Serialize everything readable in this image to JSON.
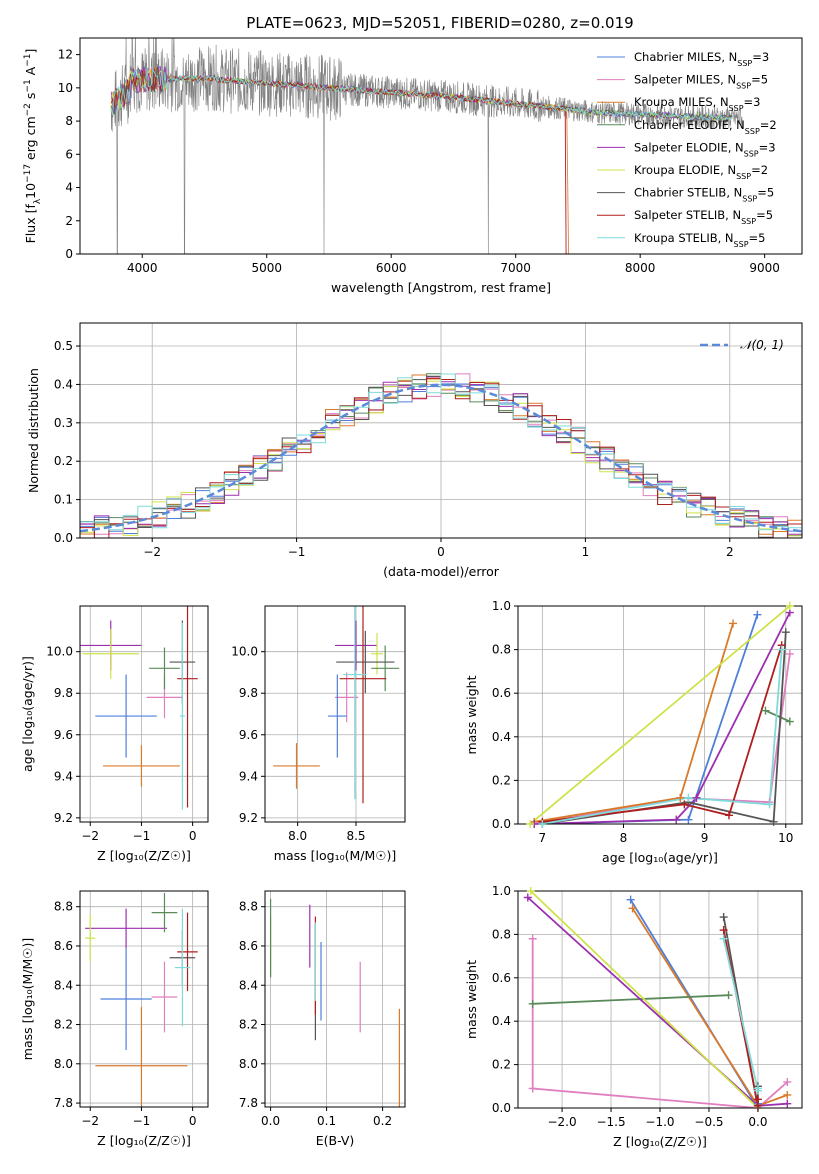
{
  "figure_title": "PLATE=0623, MJD=52051, FIBERID=0280, z=0.019",
  "series_styles": [
    {
      "name": "Chabrier MILES",
      "nssp": "3",
      "color": "#4f7fd9"
    },
    {
      "name": "Salpeter MILES",
      "nssp": "5",
      "color": "#e07fbf"
    },
    {
      "name": "Kroupa MILES",
      "nssp": "3",
      "color": "#d97a2b"
    },
    {
      "name": "Chabrier ELODIE",
      "nssp": "2",
      "color": "#5a8a5a"
    },
    {
      "name": "Salpeter ELODIE",
      "nssp": "3",
      "color": "#9b2fae"
    },
    {
      "name": "Kroupa ELODIE",
      "nssp": "2",
      "color": "#cfe24a"
    },
    {
      "name": "Chabrier STELIB",
      "nssp": "5",
      "color": "#555555"
    },
    {
      "name": "Salpeter STELIB",
      "nssp": "5",
      "color": "#b01e1e"
    },
    {
      "name": "Kroupa STELIB",
      "nssp": "5",
      "color": "#7fdada"
    }
  ],
  "chart_data": [
    {
      "id": "spectrum",
      "type": "line",
      "xlabel": "wavelength [Angstrom, rest frame]",
      "ylabel": "Flux [f",
      "xlim": [
        3500,
        9300
      ],
      "ylim": [
        0,
        13
      ],
      "xticks": [
        4000,
        5000,
        6000,
        7000,
        8000,
        9000
      ],
      "yticks": [
        0,
        2,
        4,
        6,
        8,
        10,
        12
      ],
      "legend_position": "upper-right",
      "data_color": "#808080",
      "grid": false
    },
    {
      "id": "residuals",
      "type": "line",
      "xlabel": "(data-model)/error",
      "ylabel": "Normed distribution",
      "xlim": [
        -2.5,
        2.5
      ],
      "ylim": [
        0,
        0.56
      ],
      "xticks": [
        -2,
        -1,
        0,
        1,
        2
      ],
      "yticks": [
        0.0,
        0.1,
        0.2,
        0.3,
        0.4,
        0.5
      ],
      "grid": true,
      "gaussian_label": "𝒩(0, 1)",
      "gaussian_color": "#5a8ad8",
      "legend_position": "upper-right"
    },
    {
      "id": "age-vs-Z",
      "type": "scatter",
      "xlabel": "Z [log₁₀(Z/Z☉)]",
      "ylabel": "age [log₁₀(age/yr)]",
      "xlim": [
        -2.2,
        0.3
      ],
      "ylim": [
        9.18,
        10.22
      ],
      "xticks": [
        -2,
        -1,
        0
      ],
      "yticks": [
        9.2,
        9.4,
        9.6,
        9.8,
        10.0
      ],
      "grid": true,
      "points": [
        {
          "s": 4,
          "x": -1.6,
          "xerr": 0.6,
          "y": 10.03,
          "yerr": 0.12
        },
        {
          "s": 5,
          "x": -1.6,
          "xerr": 0.55,
          "y": 9.99,
          "yerr": 0.12
        },
        {
          "s": 1,
          "x": -0.55,
          "xerr": 0.35,
          "y": 9.78,
          "yerr": 0.1
        },
        {
          "s": 0,
          "x": -1.3,
          "xerr": 0.6,
          "y": 9.69,
          "yerr": 0.2
        },
        {
          "s": 2,
          "x": -1.0,
          "xerr": 0.75,
          "y": 9.45,
          "yerr": 0.1
        },
        {
          "s": 3,
          "x": -0.55,
          "xerr": 0.3,
          "y": 9.92,
          "yerr": 0.1
        },
        {
          "s": 6,
          "x": -0.2,
          "xerr": 0.25,
          "y": 9.95,
          "yerr": 0.2
        },
        {
          "s": 7,
          "x": -0.1,
          "xerr": 0.2,
          "y": 9.87,
          "yerr": 0.62
        },
        {
          "s": 8,
          "x": -0.2,
          "xerr": 0.05,
          "y": 9.69,
          "yerr": 0.45
        }
      ]
    },
    {
      "id": "age-vs-mass",
      "type": "scatter",
      "xlabel": "mass [log₁₀(M/M☉)]",
      "ylabel": "",
      "xlim": [
        7.72,
        8.92
      ],
      "ylim": [
        9.18,
        10.22
      ],
      "xticks": [
        8.0,
        8.5
      ],
      "yticks": [
        9.2,
        9.4,
        9.6,
        9.8,
        10.0
      ],
      "grid": true,
      "points": [
        {
          "s": 4,
          "x": 8.5,
          "xerr": 0.18,
          "y": 10.03,
          "yerr": 0.12
        },
        {
          "s": 5,
          "x": 8.68,
          "xerr": 0.05,
          "y": 9.99,
          "yerr": 0.1
        },
        {
          "s": 1,
          "x": 8.42,
          "xerr": 0.1,
          "y": 9.78,
          "yerr": 0.12
        },
        {
          "s": 0,
          "x": 8.34,
          "xerr": 0.08,
          "y": 9.69,
          "yerr": 0.2
        },
        {
          "s": 2,
          "x": 7.99,
          "xerr": 0.2,
          "y": 9.45,
          "yerr": 0.11
        },
        {
          "s": 3,
          "x": 8.75,
          "xerr": 0.12,
          "y": 9.92,
          "yerr": 0.11
        },
        {
          "s": 6,
          "x": 8.58,
          "xerr": 0.25,
          "y": 9.95,
          "yerr": 0.15
        },
        {
          "s": 7,
          "x": 8.56,
          "xerr": 0.2,
          "y": 9.87,
          "yerr": 0.6
        },
        {
          "s": 8,
          "x": 8.49,
          "xerr": 0.1,
          "y": 9.89,
          "yerr": 0.6
        }
      ]
    },
    {
      "id": "weight-vs-age",
      "type": "line",
      "xlabel": "age  [log₁₀(age/yr)]",
      "ylabel": "mass weight",
      "xlim": [
        6.7,
        10.2
      ],
      "ylim": [
        0,
        1
      ],
      "xticks": [
        7,
        8,
        9,
        10
      ],
      "yticks": [
        0.0,
        0.2,
        0.4,
        0.6,
        0.8,
        1.0
      ],
      "grid": true,
      "series": [
        {
          "s": 0,
          "points": [
            [
              7.0,
              0.0
            ],
            [
              8.8,
              0.02
            ],
            [
              9.65,
              0.96
            ]
          ]
        },
        {
          "s": 1,
          "points": [
            [
              6.9,
              0.0
            ],
            [
              8.7,
              0.12
            ],
            [
              9.8,
              0.1
            ],
            [
              10.05,
              0.78
            ]
          ]
        },
        {
          "s": 2,
          "points": [
            [
              6.9,
              0.01
            ],
            [
              8.7,
              0.12
            ],
            [
              9.35,
              0.92
            ]
          ]
        },
        {
          "s": 3,
          "points": [
            [
              9.75,
              0.52
            ],
            [
              10.05,
              0.47
            ]
          ]
        },
        {
          "s": 4,
          "points": [
            [
              6.9,
              0.0
            ],
            [
              8.65,
              0.02
            ],
            [
              8.9,
              0.12
            ],
            [
              10.05,
              0.97
            ]
          ]
        },
        {
          "s": 5,
          "points": [
            [
              6.85,
              0.0
            ],
            [
              10.05,
              1.0
            ]
          ]
        },
        {
          "s": 6,
          "points": [
            [
              7.0,
              0.0
            ],
            [
              8.8,
              0.1
            ],
            [
              9.85,
              0.01
            ],
            [
              10.0,
              0.88
            ]
          ]
        },
        {
          "s": 7,
          "points": [
            [
              7.0,
              0.01
            ],
            [
              8.75,
              0.09
            ],
            [
              9.3,
              0.04
            ],
            [
              9.95,
              0.82
            ]
          ]
        },
        {
          "s": 8,
          "points": [
            [
              7.0,
              0.0
            ],
            [
              8.8,
              0.12
            ],
            [
              9.8,
              0.09
            ],
            [
              9.95,
              0.8
            ]
          ]
        }
      ]
    },
    {
      "id": "mass-vs-Z",
      "type": "scatter",
      "xlabel": "Z [log₁₀(Z/Z☉)]",
      "ylabel": "mass [log₁₀(M/M☉)]",
      "xlim": [
        -2.2,
        0.3
      ],
      "ylim": [
        7.78,
        8.88
      ],
      "xticks": [
        -2,
        -1,
        0
      ],
      "yticks": [
        7.8,
        8.0,
        8.2,
        8.4,
        8.6,
        8.8
      ],
      "grid": true,
      "points": [
        {
          "s": 4,
          "x": -1.3,
          "xerr": 0.8,
          "y": 8.69,
          "yerr": 0.1
        },
        {
          "s": 5,
          "x": -2.0,
          "xerr": 0.1,
          "y": 8.64,
          "yerr": 0.12
        },
        {
          "s": 1,
          "x": -0.55,
          "xerr": 0.25,
          "y": 8.34,
          "yerr": 0.18
        },
        {
          "s": 0,
          "x": -1.3,
          "xerr": 0.5,
          "y": 8.33,
          "yerr": 0.26
        },
        {
          "s": 2,
          "x": -1.0,
          "xerr": 0.9,
          "y": 7.99,
          "yerr": 0.3
        },
        {
          "s": 3,
          "x": -0.55,
          "xerr": 0.25,
          "y": 8.77,
          "yerr": 0.1
        },
        {
          "s": 6,
          "x": -0.2,
          "xerr": 0.25,
          "y": 8.54,
          "yerr": 0.14
        },
        {
          "s": 7,
          "x": -0.1,
          "xerr": 0.2,
          "y": 8.57,
          "yerr": 0.2
        },
        {
          "s": 8,
          "x": -0.2,
          "xerr": 0.15,
          "y": 8.49,
          "yerr": 0.3
        }
      ]
    },
    {
      "id": "mass-vs-EBV",
      "type": "scatter",
      "xlabel": "E(B-V)",
      "ylabel": "",
      "xlim": [
        -0.01,
        0.24
      ],
      "ylim": [
        7.78,
        8.88
      ],
      "xticks": [
        0.0,
        0.1,
        0.2
      ],
      "yticks": [
        7.8,
        8.0,
        8.2,
        8.4,
        8.6,
        8.8
      ],
      "grid": true,
      "points": [
        {
          "s": 4,
          "x": 0.07,
          "y": 8.65,
          "yerr": 0.16
        },
        {
          "s": 5,
          "x": 0.0,
          "y": 8.6,
          "yerr": 0.15
        },
        {
          "s": 1,
          "x": 0.16,
          "y": 8.34,
          "yerr": 0.18
        },
        {
          "s": 0,
          "x": 0.09,
          "y": 8.42,
          "yerr": 0.2
        },
        {
          "s": 2,
          "x": 0.23,
          "y": 8.02,
          "yerr": 0.26
        },
        {
          "s": 3,
          "x": 0.0,
          "y": 8.64,
          "yerr": 0.2
        },
        {
          "s": 6,
          "x": 0.08,
          "y": 8.42,
          "yerr": 0.3
        },
        {
          "s": 7,
          "x": 0.08,
          "y": 8.5,
          "yerr": 0.25
        },
        {
          "s": 8,
          "x": 0.08,
          "y": 8.52,
          "yerr": 0.2
        }
      ]
    },
    {
      "id": "weight-vs-Z",
      "type": "line",
      "xlabel": "Z [log₁₀(Z/Z☉)]",
      "ylabel": "mass weight",
      "xlim": [
        -2.45,
        0.45
      ],
      "ylim": [
        0,
        1
      ],
      "xticks": [
        -2.0,
        -1.5,
        -1.0,
        -0.5,
        0.0
      ],
      "yticks": [
        0.0,
        0.2,
        0.4,
        0.6,
        0.8,
        1.0
      ],
      "grid": true,
      "series": [
        {
          "s": 0,
          "points": [
            [
              -1.3,
              0.96
            ],
            [
              0.0,
              0.0
            ],
            [
              0.0,
              0.02
            ]
          ]
        },
        {
          "s": 1,
          "points": [
            [
              -2.3,
              0.78
            ],
            [
              -2.3,
              0.09
            ],
            [
              0.0,
              0.0
            ],
            [
              0.3,
              0.12
            ]
          ]
        },
        {
          "s": 2,
          "points": [
            [
              -1.28,
              0.92
            ],
            [
              0.0,
              0.01
            ],
            [
              0.3,
              0.06
            ]
          ]
        },
        {
          "s": 3,
          "points": [
            [
              -2.3,
              0.48
            ],
            [
              -0.3,
              0.52
            ]
          ]
        },
        {
          "s": 4,
          "points": [
            [
              -2.35,
              0.97
            ],
            [
              0.0,
              0.01
            ],
            [
              0.3,
              0.02
            ]
          ]
        },
        {
          "s": 5,
          "points": [
            [
              -2.32,
              1.0
            ],
            [
              0.0,
              0.0
            ]
          ]
        },
        {
          "s": 6,
          "points": [
            [
              -0.35,
              0.88
            ],
            [
              0.0,
              0.0
            ],
            [
              0.0,
              0.1
            ]
          ]
        },
        {
          "s": 7,
          "points": [
            [
              -0.35,
              0.82
            ],
            [
              0.0,
              0.01
            ],
            [
              0.0,
              0.04
            ]
          ]
        },
        {
          "s": 8,
          "points": [
            [
              -0.35,
              0.78
            ],
            [
              0.0,
              0.08
            ],
            [
              0.0,
              0.09
            ]
          ]
        }
      ]
    }
  ]
}
